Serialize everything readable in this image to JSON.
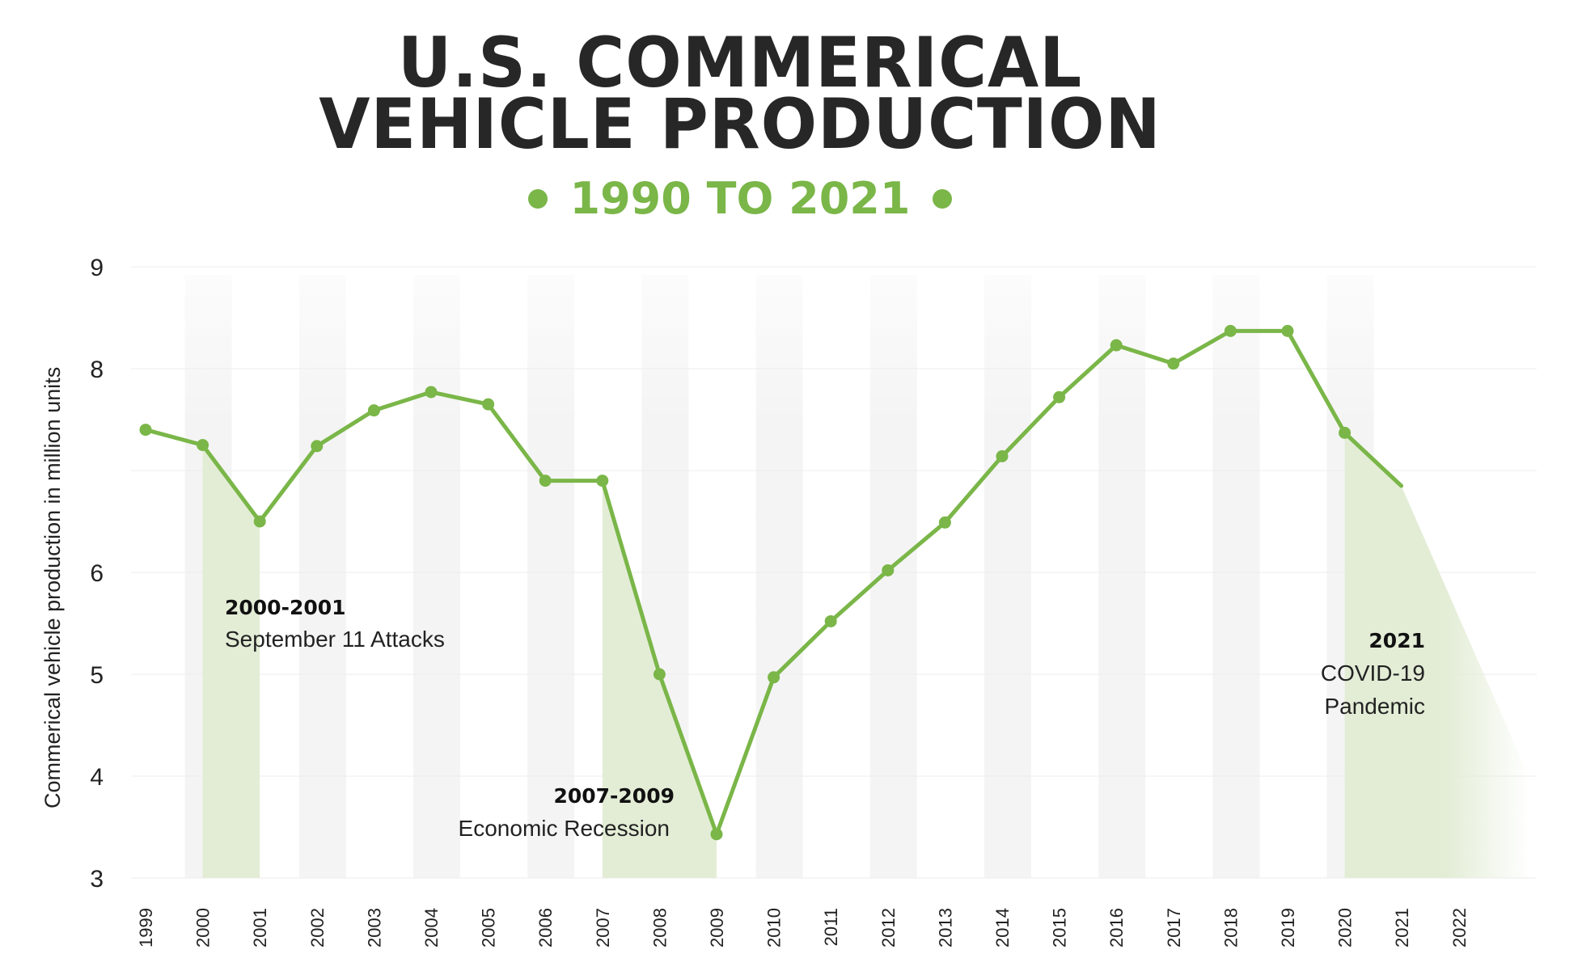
{
  "header": {
    "title_line1": "U.S. COMMERICAL",
    "title_line2": "VEHICLE PRODUCTION",
    "subtitle": "1990 TO 2021"
  },
  "colors": {
    "accent": "#7ab648",
    "shade": "#e3edd6",
    "band": "#f5f5f5",
    "title": "#272727"
  },
  "chart_data": {
    "type": "line",
    "ylabel": "Commerical vehicle production in million units",
    "xlabel": "",
    "ylim": [
      3,
      9
    ],
    "y_ticks": [
      3,
      4,
      5,
      6,
      8,
      9
    ],
    "x_ticks": [
      "1999",
      "2000",
      "2001",
      "2002",
      "2003",
      "2004",
      "2005",
      "2006",
      "2007",
      "2008",
      "2009",
      "2010",
      "2011",
      "2012",
      "2013",
      "2014",
      "2015",
      "2016",
      "2017",
      "2018",
      "2019",
      "2020",
      "2021",
      "2022"
    ],
    "grid": true,
    "series": [
      {
        "x": [
          "1999",
          "2000",
          "2001",
          "2002",
          "2003",
          "2004",
          "2005",
          "2006",
          "2007",
          "2008",
          "2009",
          "2010",
          "2011",
          "2012",
          "2013",
          "2014",
          "2015",
          "2016",
          "2017",
          "2018",
          "2019",
          "2020"
        ],
        "values": [
          7.4,
          7.25,
          6.5,
          7.24,
          7.59,
          7.77,
          7.65,
          6.9,
          6.9,
          5.0,
          3.43,
          4.97,
          5.52,
          6.02,
          6.49,
          7.14,
          7.72,
          8.23,
          8.05,
          8.37,
          8.37,
          7.37
        ]
      }
    ],
    "annotations": [
      {
        "years": "2000-2001",
        "label": "September 11 Attacks"
      },
      {
        "years": "2007-2009",
        "label": "Economic Recession"
      },
      {
        "years": "2021",
        "label_line1": "COVID-19",
        "label_line2": "Pandemic"
      }
    ]
  }
}
